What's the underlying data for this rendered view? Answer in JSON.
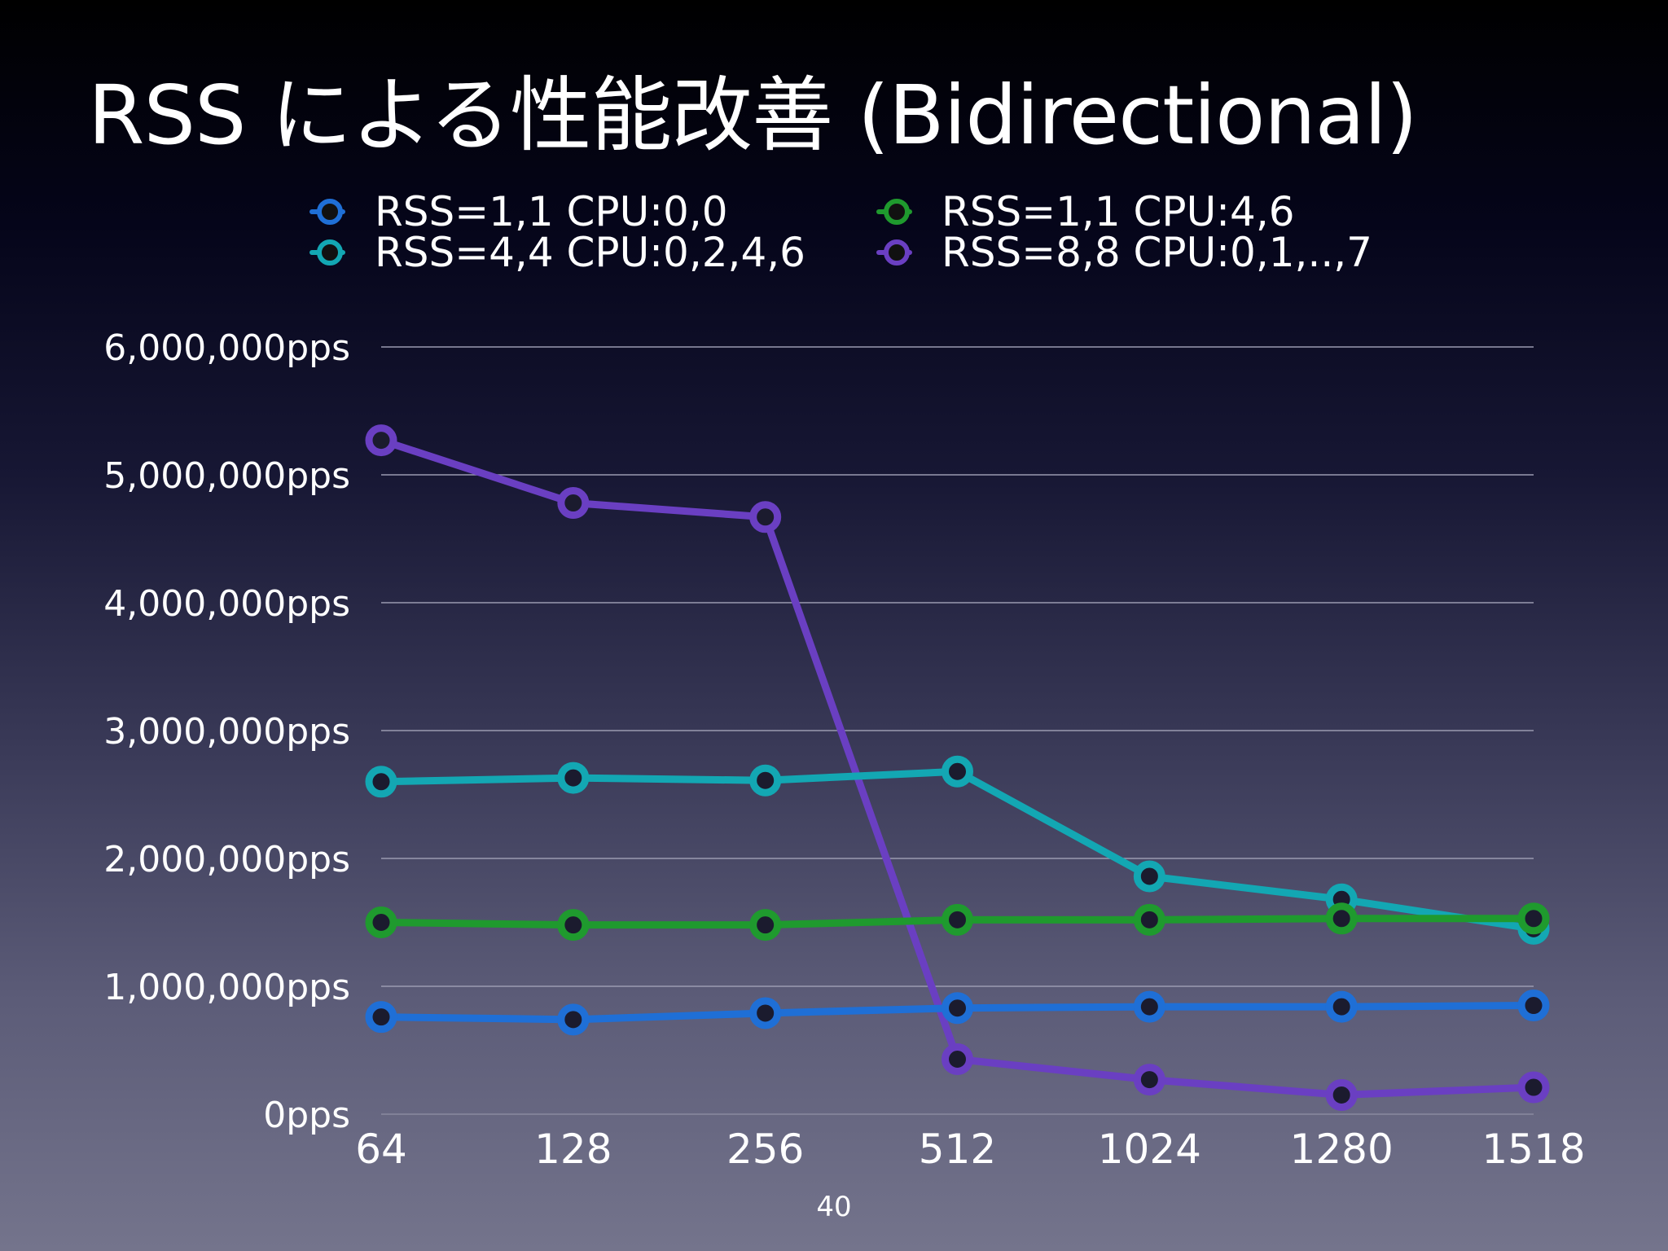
{
  "slide": {
    "title": "RSS による性能改善 (Bidirectional)",
    "page_number": "40"
  },
  "colors": {
    "RSS=1,1 CPU:0,0": "#1f6fd6",
    "RSS=4,4 CPU:0,2,4,6": "#13a7b3",
    "RSS=1,1 CPU:4,6": "#1f9a2e",
    "RSS=8,8 CPU:0,1,..,7": "#6a3fc2"
  },
  "chart_data": {
    "type": "line",
    "title": "",
    "xlabel": "",
    "ylabel": "",
    "categories": [
      "64",
      "128",
      "256",
      "512",
      "1024",
      "1280",
      "1518"
    ],
    "y_ticks": [
      "0pps",
      "1,000,000pps",
      "2,000,000pps",
      "3,000,000pps",
      "4,000,000pps",
      "5,000,000pps",
      "6,000,000pps"
    ],
    "ylim": [
      0,
      6000000
    ],
    "grid": true,
    "legend_position": "top",
    "series": [
      {
        "name": "RSS=1,1 CPU:0,0",
        "values": [
          760000,
          740000,
          790000,
          830000,
          840000,
          840000,
          850000
        ]
      },
      {
        "name": "RSS=4,4 CPU:0,2,4,6",
        "values": [
          2600000,
          2630000,
          2610000,
          2680000,
          1860000,
          1680000,
          1450000
        ]
      },
      {
        "name": "RSS=1,1 CPU:4,6",
        "values": [
          1500000,
          1480000,
          1480000,
          1520000,
          1520000,
          1530000,
          1530000
        ]
      },
      {
        "name": "RSS=8,8 CPU:0,1,..,7",
        "values": [
          5270000,
          4780000,
          4670000,
          430000,
          270000,
          150000,
          210000
        ]
      }
    ]
  }
}
